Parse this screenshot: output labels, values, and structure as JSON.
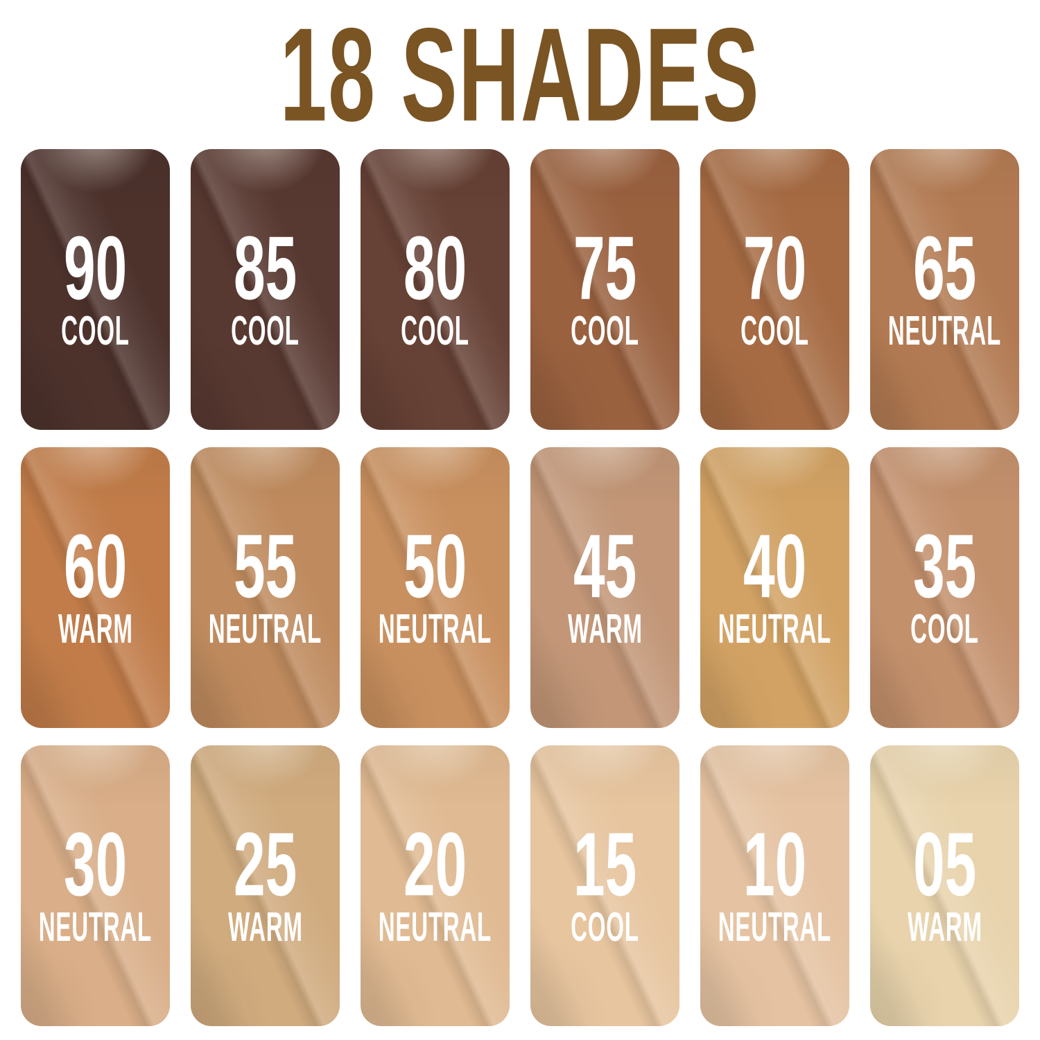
{
  "title": "18 SHADES",
  "title_color": "#7a5423",
  "shade_count": "18",
  "shades": [
    {
      "number": "90",
      "undertone": "COOL",
      "color": "#4d322c"
    },
    {
      "number": "85",
      "undertone": "COOL",
      "color": "#583931"
    },
    {
      "number": "80",
      "undertone": "COOL",
      "color": "#664135"
    },
    {
      "number": "75",
      "undertone": "COOL",
      "color": "#9a613f"
    },
    {
      "number": "70",
      "undertone": "COOL",
      "color": "#a66b43"
    },
    {
      "number": "65",
      "undertone": "NEUTRAL",
      "color": "#b27a52"
    },
    {
      "number": "60",
      "undertone": "WARM",
      "color": "#c17c49"
    },
    {
      "number": "55",
      "undertone": "NEUTRAL",
      "color": "#bf8b5e"
    },
    {
      "number": "50",
      "undertone": "NEUTRAL",
      "color": "#c9905f"
    },
    {
      "number": "45",
      "undertone": "WARM",
      "color": "#c29677"
    },
    {
      "number": "40",
      "undertone": "NEUTRAL",
      "color": "#d2a264"
    },
    {
      "number": "35",
      "undertone": "COOL",
      "color": "#c3906c"
    },
    {
      "number": "30",
      "undertone": "NEUTRAL",
      "color": "#d9ae88"
    },
    {
      "number": "25",
      "undertone": "WARM",
      "color": "#d0ab7e"
    },
    {
      "number": "20",
      "undertone": "NEUTRAL",
      "color": "#e0ba92"
    },
    {
      "number": "15",
      "undertone": "COOL",
      "color": "#e7c59f"
    },
    {
      "number": "10",
      "undertone": "NEUTRAL",
      "color": "#e5c3a2"
    },
    {
      "number": "05",
      "undertone": "WARM",
      "color": "#e8d3ac"
    }
  ]
}
